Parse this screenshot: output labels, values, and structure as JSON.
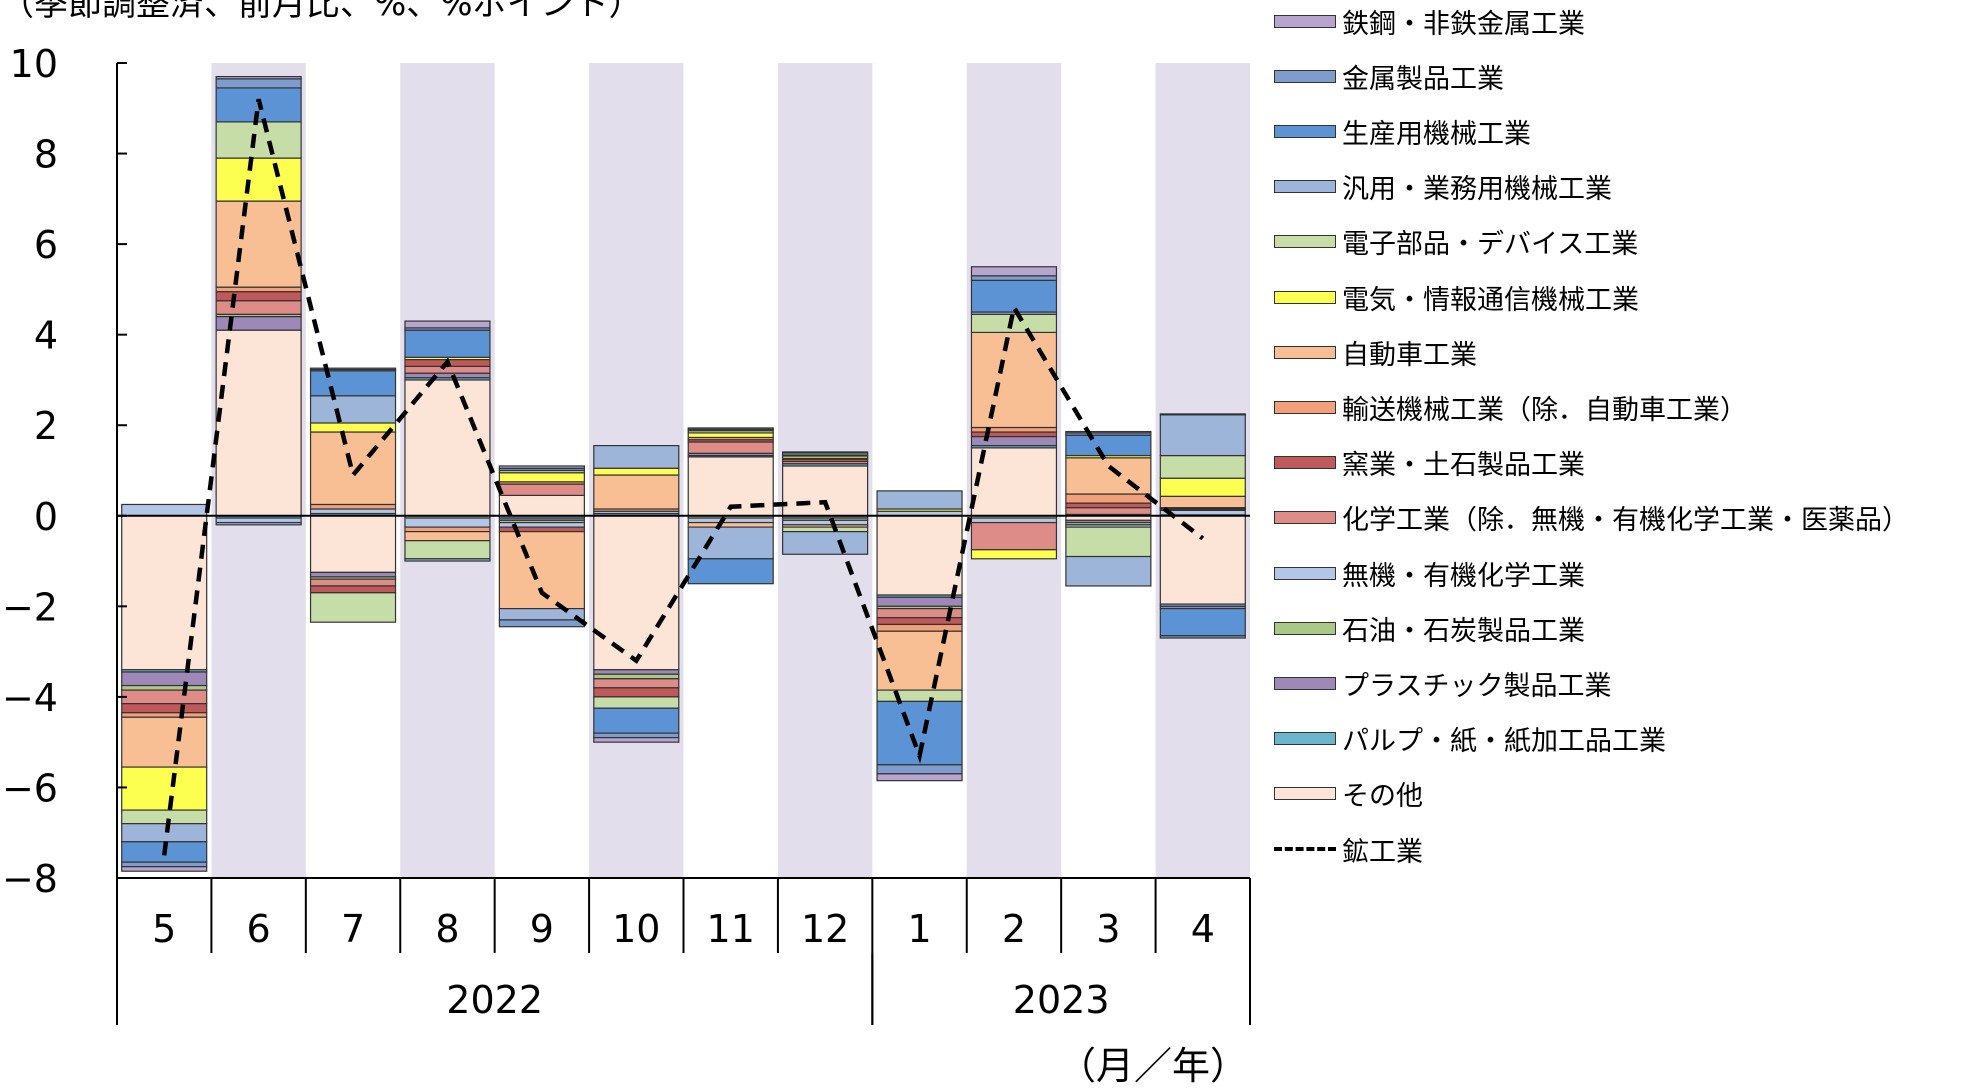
{
  "subtitle": "（季節調整済、前月比、%、%ポイント）",
  "unit_label": "（月／年）",
  "chart_data": {
    "type": "bar",
    "stacked": true,
    "categories": [
      "5",
      "6",
      "7",
      "8",
      "9",
      "10",
      "11",
      "12",
      "1",
      "2",
      "3",
      "4"
    ],
    "year_groups": [
      {
        "label": "2022",
        "start": 0,
        "end": 7
      },
      {
        "label": "2023",
        "start": 8,
        "end": 11
      }
    ],
    "shaded_categories": [
      1,
      3,
      5,
      7,
      9,
      11
    ],
    "ylim": [
      -8,
      10
    ],
    "yticks": [
      -8,
      -6,
      -4,
      -2,
      0,
      2,
      4,
      6,
      8,
      10
    ],
    "ytick_labels": [
      "−8",
      "−6",
      "−4",
      "−2",
      "0",
      "2",
      "4",
      "6",
      "8",
      "10"
    ],
    "grid": false,
    "legend_position": "right",
    "series": [
      {
        "name": "その他",
        "color": "#FCE4D6",
        "values": [
          -3.4,
          4.1,
          -1.25,
          3.0,
          0.45,
          -3.4,
          1.3,
          1.1,
          -1.75,
          1.5,
          -0.1,
          -1.95
        ]
      },
      {
        "name": "パルプ・紙・紙加工品工業",
        "color": "#6BB5CD",
        "values": [
          -0.05,
          -0.05,
          0.05,
          0.05,
          -0.05,
          0.05,
          0.03,
          0.05,
          -0.05,
          0.05,
          0.03,
          -0.05
        ]
      },
      {
        "name": "プラスチック製品工業",
        "color": "#9E88B8",
        "values": [
          -0.3,
          0.3,
          -0.1,
          0.1,
          -0.05,
          -0.1,
          0.05,
          -0.05,
          -0.2,
          0.2,
          -0.05,
          -0.05
        ]
      },
      {
        "name": "石油・石炭製品工業",
        "color": "#A9C986",
        "values": [
          -0.1,
          0.05,
          -0.05,
          -0.05,
          -0.05,
          -0.1,
          -0.05,
          -0.05,
          -0.05,
          -0.05,
          -0.05,
          0.02
        ]
      },
      {
        "name": "無機・有機化学工業",
        "color": "#B4C6E7",
        "values": [
          0.25,
          -0.1,
          0.1,
          -0.2,
          -0.1,
          0.05,
          -0.1,
          -0.1,
          0.1,
          -0.1,
          -0.05,
          0.1
        ]
      },
      {
        "name": "化学工業（除．無機・有機化学工業・医薬品）",
        "color": "#DE8C88",
        "values": [
          -0.3,
          0.3,
          -0.15,
          0.15,
          0.25,
          -0.2,
          0.25,
          0.05,
          -0.2,
          -0.6,
          0.15,
          0.02
        ]
      },
      {
        "name": "窯業・土石製品工業",
        "color": "#C0595A",
        "values": [
          -0.2,
          0.2,
          -0.15,
          0.15,
          -0.1,
          -0.2,
          0.05,
          0.05,
          -0.15,
          0.1,
          0.1,
          0.02
        ]
      },
      {
        "name": "輸送機械工業（除．自動車工業）",
        "color": "#F2A07A",
        "values": [
          -0.1,
          0.1,
          0.1,
          -0.1,
          0.05,
          0.05,
          0.05,
          0.02,
          -0.15,
          0.1,
          0.2,
          0.02
        ]
      },
      {
        "name": "自動車工業",
        "color": "#F8BF95",
        "values": [
          -1.1,
          1.9,
          1.6,
          -0.2,
          -1.7,
          0.75,
          -0.1,
          -0.05,
          -1.3,
          2.1,
          0.8,
          0.25
        ]
      },
      {
        "name": "電気・情報通信機械工業",
        "color": "#FCFF50",
        "values": [
          -0.95,
          0.95,
          0.2,
          0.05,
          0.2,
          0.15,
          0.1,
          0.05,
          0.05,
          -0.2,
          0.05,
          0.4
        ]
      },
      {
        "name": "電子部品・デバイス工業",
        "color": "#C7DDA8",
        "values": [
          -0.3,
          0.8,
          -0.65,
          -0.4,
          0.05,
          -0.25,
          0.05,
          -0.1,
          -0.25,
          0.4,
          -0.65,
          0.5
        ]
      },
      {
        "name": "汎用・業務用機械工業",
        "color": "#9EB5DA",
        "values": [
          -0.4,
          -0.05,
          0.6,
          -0.05,
          -0.25,
          0.5,
          -0.7,
          -0.5,
          0.4,
          0.05,
          -0.65,
          0.9
        ]
      },
      {
        "name": "生産用機械工業",
        "color": "#5C93D4",
        "values": [
          -0.45,
          0.75,
          0.55,
          0.6,
          0.05,
          -0.55,
          -0.55,
          0.02,
          -1.4,
          0.7,
          0.45,
          -0.6
        ]
      },
      {
        "name": "金属製品工業",
        "color": "#7E9CCC",
        "values": [
          -0.1,
          0.2,
          0.03,
          0.05,
          -0.15,
          -0.1,
          0.03,
          0.05,
          -0.2,
          0.1,
          0.05,
          -0.05
        ]
      },
      {
        "name": "鉄鋼・非鉄金属工業",
        "color": "#B7A5D0",
        "values": [
          -0.1,
          0.05,
          0.03,
          0.15,
          0.05,
          -0.1,
          0.03,
          0.02,
          -0.15,
          0.2,
          0.03,
          0.02
        ]
      }
    ],
    "line": {
      "name": "鉱工業",
      "values": [
        -7.5,
        9.2,
        0.9,
        3.4,
        -1.7,
        -3.2,
        0.2,
        0.3,
        -5.3,
        4.6,
        1.1,
        -0.5
      ]
    }
  }
}
